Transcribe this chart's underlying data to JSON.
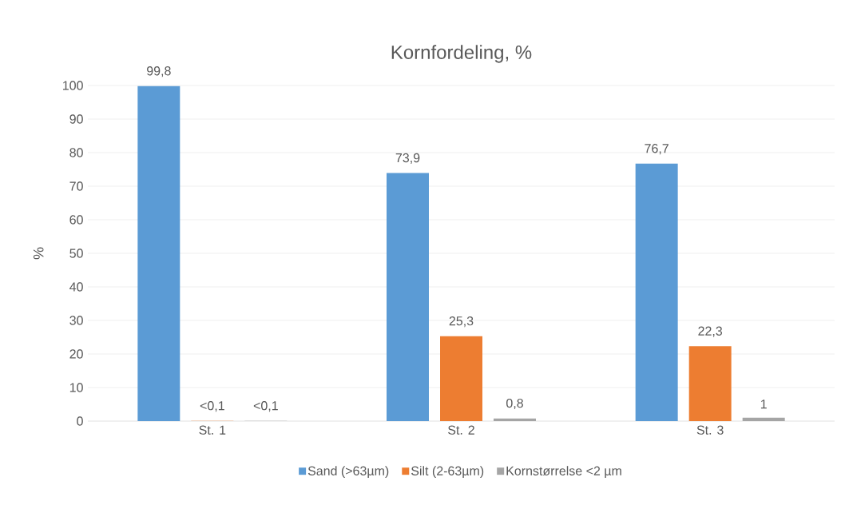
{
  "chart_data": {
    "type": "bar",
    "title": "Kornfordeling, %",
    "ylabel": "%",
    "categories": [
      "St. 1",
      "St. 2",
      "St. 3"
    ],
    "series": [
      {
        "name": "Sand (>63µm)",
        "color": "#5b9bd5",
        "values": [
          99.8,
          73.9,
          76.7
        ],
        "value_labels": [
          "99,8",
          "73,9",
          "76,7"
        ]
      },
      {
        "name": "Silt (2-63µm)",
        "color": "#ed7d31",
        "values": [
          0.05,
          25.3,
          22.3
        ],
        "value_labels": [
          "<0,1",
          "25,3",
          "22,3"
        ]
      },
      {
        "name": "Kornstørrelse <2 µm",
        "color": "#a5a5a5",
        "values": [
          0.05,
          0.8,
          1
        ],
        "value_labels": [
          "<0,1",
          "0,8",
          "1"
        ]
      }
    ],
    "ylim": [
      0,
      100
    ],
    "yticks": [
      0,
      10,
      20,
      30,
      40,
      50,
      60,
      70,
      80,
      90,
      100
    ],
    "grid": "y",
    "legend": "bottom"
  }
}
